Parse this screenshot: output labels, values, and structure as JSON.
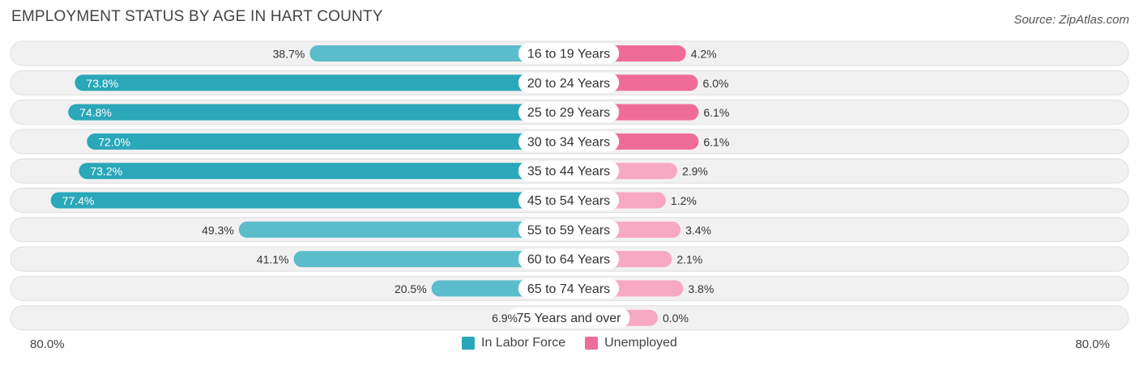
{
  "header": {
    "title": "EMPLOYMENT STATUS BY AGE IN HART COUNTY",
    "source": "Source: ZipAtlas.com"
  },
  "colors": {
    "labor_dark": "#2aa7b8",
    "labor_light": "#5bbccb",
    "unemp_dark": "#f06c98",
    "unemp_light": "#f7a9c3",
    "row_bg": "#f1f1f1",
    "row_border": "#dedede"
  },
  "axis": {
    "left_label": "80.0%",
    "right_label": "80.0%"
  },
  "legend": {
    "items": [
      {
        "label": "In Labor Force",
        "color": "#2aa7b8"
      },
      {
        "label": "Unemployed",
        "color": "#f06c98"
      }
    ]
  },
  "chart_data": {
    "type": "bar",
    "orientation": "horizontal-diverging",
    "title": "EMPLOYMENT STATUS BY AGE IN HART COUNTY",
    "xlim": [
      -80,
      80
    ],
    "categories": [
      "16 to 19 Years",
      "20 to 24 Years",
      "25 to 29 Years",
      "30 to 34 Years",
      "35 to 44 Years",
      "45 to 54 Years",
      "55 to 59 Years",
      "60 to 64 Years",
      "65 to 74 Years",
      "75 Years and over"
    ],
    "series": [
      {
        "name": "In Labor Force",
        "values": [
          38.7,
          73.8,
          74.8,
          72.0,
          73.2,
          77.4,
          49.3,
          41.1,
          20.5,
          6.9
        ],
        "labels": [
          "38.7%",
          "73.8%",
          "74.8%",
          "72.0%",
          "73.2%",
          "77.4%",
          "49.3%",
          "41.1%",
          "20.5%",
          "6.9%"
        ]
      },
      {
        "name": "Unemployed",
        "values": [
          4.2,
          6.0,
          6.1,
          6.1,
          2.9,
          1.2,
          3.4,
          2.1,
          3.8,
          0.0
        ],
        "labels": [
          "4.2%",
          "6.0%",
          "6.1%",
          "6.1%",
          "2.9%",
          "1.2%",
          "3.4%",
          "2.1%",
          "3.8%",
          "0.0%"
        ]
      }
    ],
    "legend": "bottom-center",
    "grid": false
  }
}
